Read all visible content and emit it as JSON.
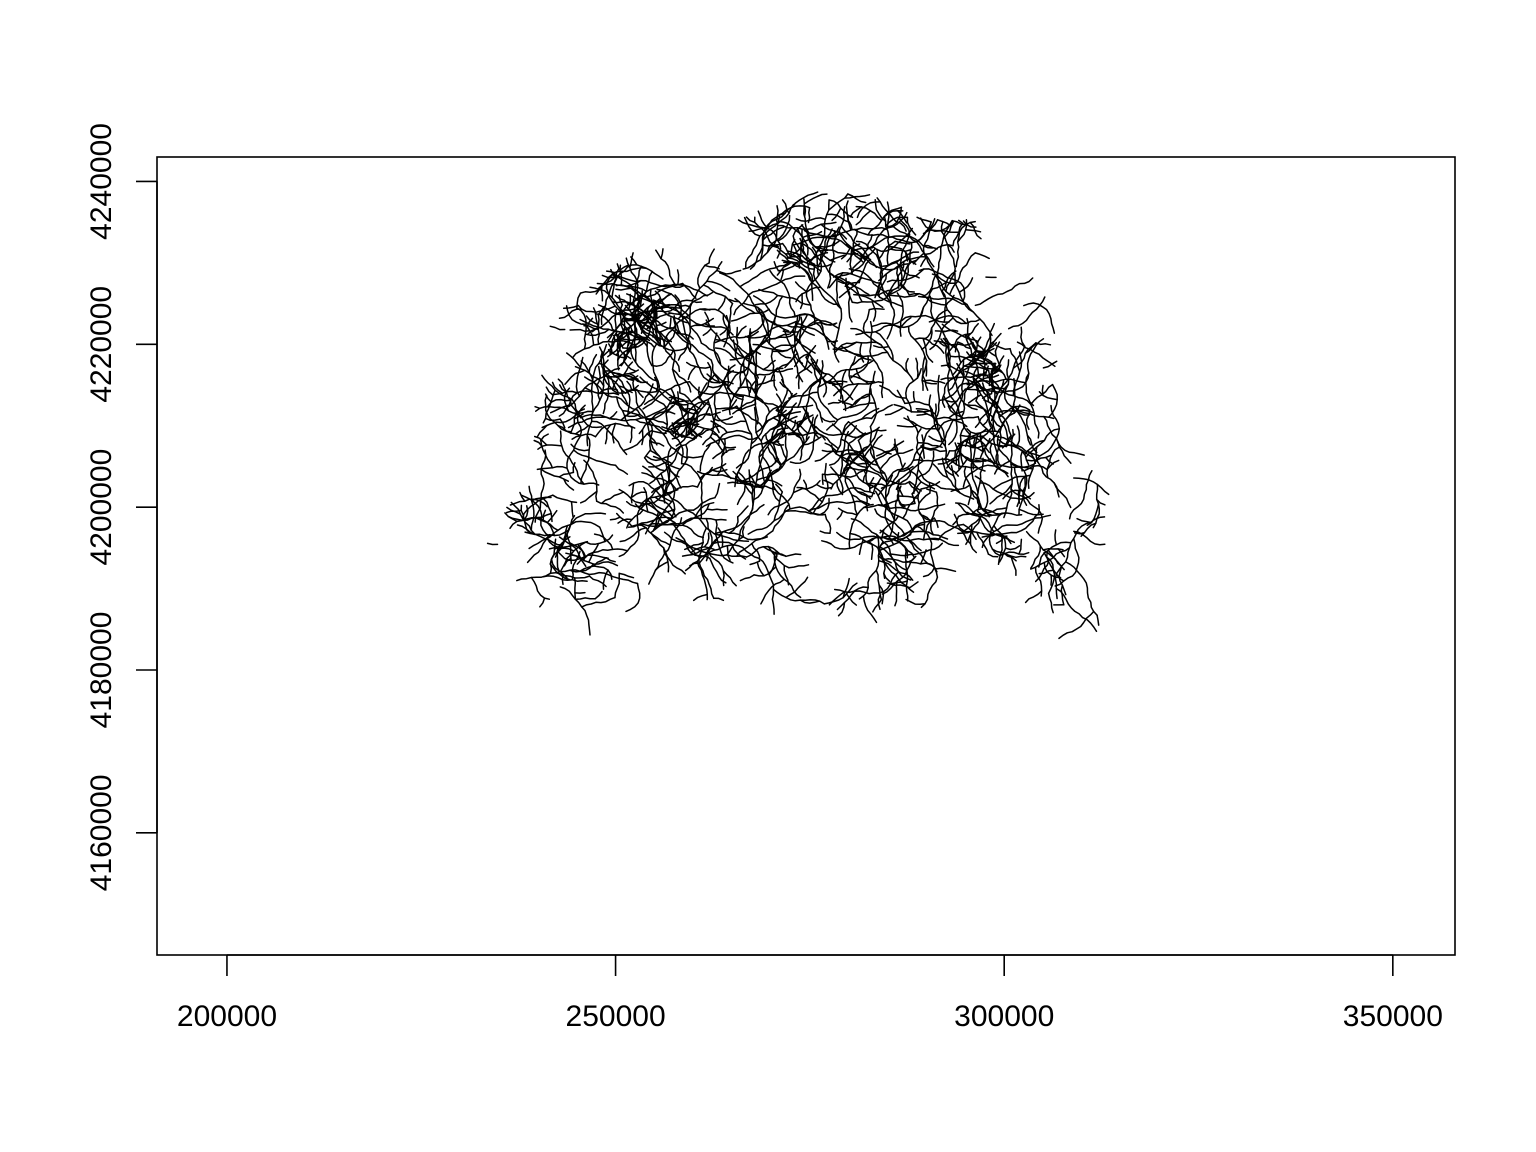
{
  "plot": {
    "type": "map",
    "xlim": [
      191000,
      358000
    ],
    "ylim": [
      4145000,
      4243000
    ],
    "x_ticks": [
      {
        "value": 200000,
        "label": "200000"
      },
      {
        "value": 250000,
        "label": "250000"
      },
      {
        "value": 300000,
        "label": "300000"
      },
      {
        "value": 350000,
        "label": "350000"
      }
    ],
    "y_ticks": [
      {
        "value": 4160000,
        "label": "4160000"
      },
      {
        "value": 4180000,
        "label": "4180000"
      },
      {
        "value": 4200000,
        "label": "4200000"
      },
      {
        "value": 4220000,
        "label": "4220000"
      },
      {
        "value": 4240000,
        "label": "4240000"
      }
    ],
    "line_color": "#000000",
    "background": "#ffffff",
    "grid": false,
    "legend": false
  }
}
